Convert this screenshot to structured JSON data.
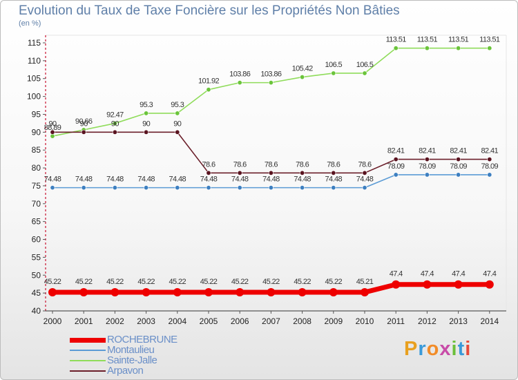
{
  "title": "Evolution du Taux de Taxe Foncière sur les Propriétés Non Bâties",
  "unit_label": "(en %)",
  "logo": "Proxiti",
  "colors": {
    "ROCHEBRUNE": "#ee0000",
    "Montaulieu": "#5b9bd5",
    "Sainte-Jalle": "#8fdc5a",
    "Arpavon": "#6b1f2a"
  },
  "chart_data": {
    "type": "line",
    "x": [
      2000,
      2001,
      2002,
      2003,
      2004,
      2005,
      2006,
      2007,
      2008,
      2009,
      2010,
      2011,
      2012,
      2013,
      2014
    ],
    "ylim": [
      40,
      115
    ],
    "yticks": [
      40,
      45,
      50,
      55,
      60,
      65,
      70,
      75,
      80,
      85,
      90,
      95,
      100,
      105,
      110,
      115
    ],
    "grid": false,
    "legend_position": "bottom-left",
    "series": [
      {
        "name": "ROCHEBRUNE",
        "values": [
          45.22,
          45.22,
          45.22,
          45.22,
          45.22,
          45.22,
          45.22,
          45.22,
          45.22,
          45.22,
          45.21,
          47.4,
          47.4,
          47.4,
          47.4
        ]
      },
      {
        "name": "Montaulieu",
        "values": [
          74.48,
          74.48,
          74.48,
          74.48,
          74.48,
          74.48,
          74.48,
          74.48,
          74.48,
          74.48,
          74.48,
          78.09,
          78.09,
          78.09,
          78.09
        ]
      },
      {
        "name": "Sainte-Jalle",
        "values": [
          88.89,
          90.66,
          92.47,
          95.3,
          95.3,
          101.92,
          103.86,
          103.86,
          105.42,
          106.5,
          106.5,
          113.51,
          113.51,
          113.51,
          113.51
        ]
      },
      {
        "name": "Arpavon",
        "values": [
          90,
          90,
          90,
          90,
          90,
          78.6,
          78.6,
          78.6,
          78.6,
          78.6,
          78.6,
          82.41,
          82.41,
          82.41,
          82.41
        ]
      }
    ]
  }
}
